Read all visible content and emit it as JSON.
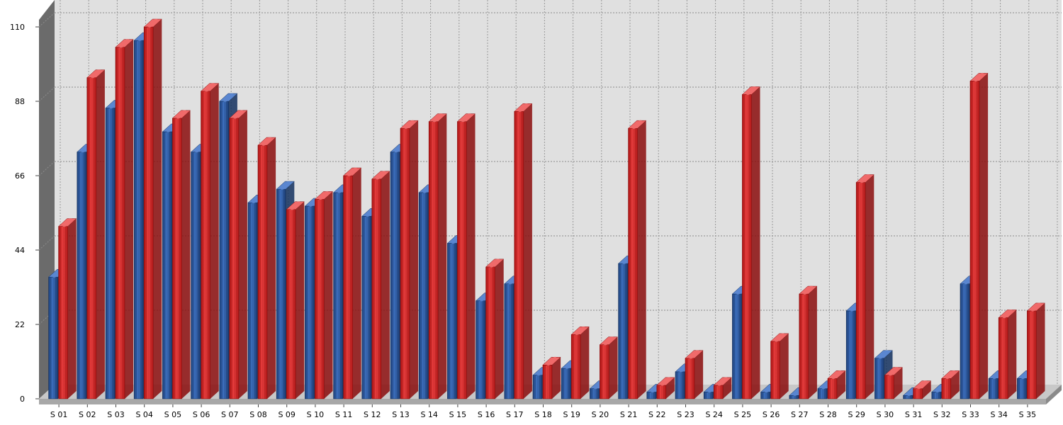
{
  "chart_data": {
    "type": "bar",
    "style": "3d-cylinder",
    "categories": [
      "S 01",
      "S 02",
      "S 03",
      "S 04",
      "S 05",
      "S 06",
      "S 07",
      "S 08",
      "S 09",
      "S 10",
      "S 11",
      "S 12",
      "S 13",
      "S 14",
      "S 15",
      "S 16",
      "S 17",
      "S 18",
      "S 19",
      "S 20",
      "S 21",
      "S 22",
      "S 23",
      "S 24",
      "S 25",
      "S 26",
      "S 27",
      "S 28",
      "S 29",
      "S 30",
      "S 31",
      "S 32",
      "S 33",
      "S 34",
      "S 35"
    ],
    "series": [
      {
        "color": "#2f5ea8",
        "values": [
          36,
          73,
          86,
          106,
          79,
          73,
          88,
          58,
          62,
          57,
          61,
          54,
          73,
          61,
          46,
          29,
          34,
          7,
          9,
          3,
          40,
          2,
          8,
          2,
          31,
          2,
          1,
          3,
          26,
          12,
          1,
          2,
          34,
          6,
          6
        ]
      },
      {
        "color": "#e03434",
        "values": [
          51,
          95,
          104,
          110,
          83,
          91,
          83,
          75,
          56,
          59,
          66,
          65,
          80,
          82,
          82,
          39,
          85,
          10,
          19,
          16,
          80,
          4,
          12,
          4,
          90,
          17,
          31,
          6,
          64,
          7,
          3,
          6,
          94,
          24,
          26
        ]
      }
    ],
    "yticks": [
      0,
      22,
      44,
      66,
      88,
      110
    ],
    "ylim": [
      0,
      110
    ],
    "grid": true,
    "legend": "none",
    "title": "",
    "xlabel": "",
    "ylabel": ""
  }
}
